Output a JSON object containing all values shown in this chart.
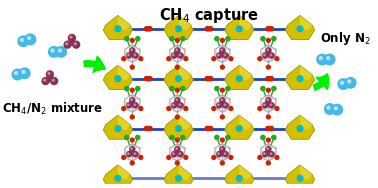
{
  "title": "CH₄ capture",
  "left_label": "CH₄/N₂ mixture",
  "right_label": "Only N₂",
  "bg_color": "#ffffff",
  "title_fontsize": 10.5,
  "label_fontsize": 8.5,
  "arrow_color": "#00ee00",
  "n2_color": "#45b8e8",
  "ch4_color": "#8b3055",
  "yellow_color": "#d4c000",
  "yellow_light": "#f0e040",
  "framework_line_color": "#aaaaaa",
  "blue_linker_color": "#2244bb",
  "red_node_color": "#cc2200",
  "green_cl_color": "#22aa22",
  "cyan_color": "#00bbcc",
  "white_color": "#ffffff"
}
